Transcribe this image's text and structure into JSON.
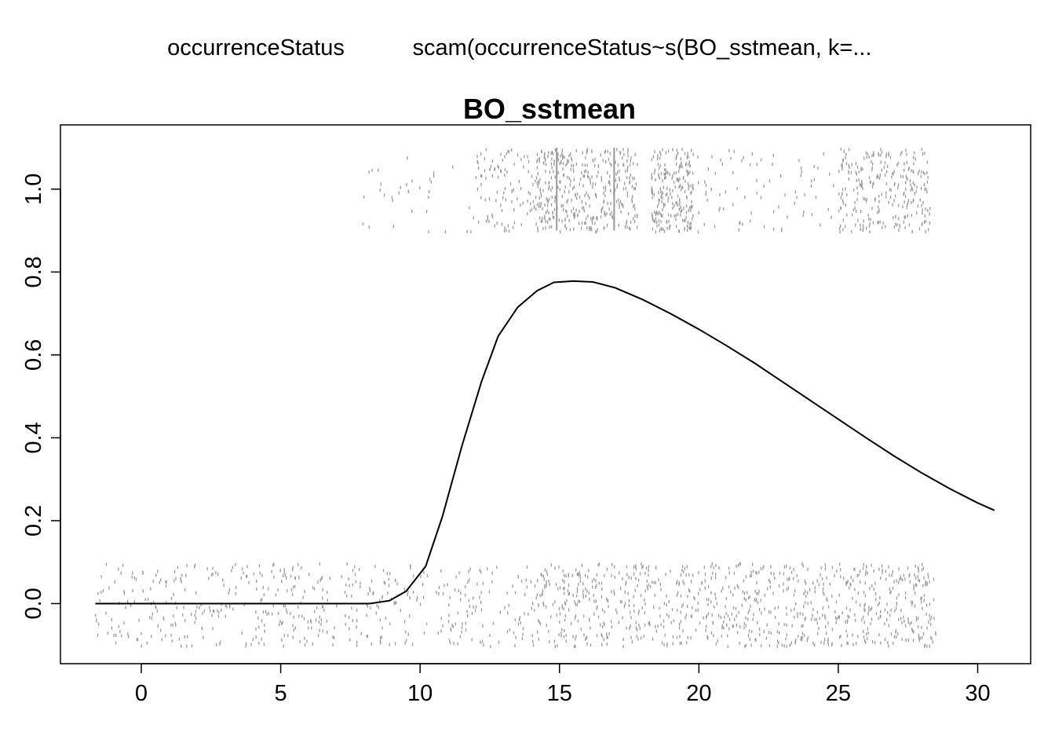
{
  "header": {
    "response_label": "occurrenceStatus",
    "model_label": "scam(occurrenceStatus~s(BO_sstmean, k=..."
  },
  "chart_data": {
    "type": "line",
    "title": "BO_sstmean",
    "xlabel": "",
    "ylabel": "",
    "xlim": [
      -2.9,
      31.9
    ],
    "ylim": [
      -0.145,
      1.155
    ],
    "x_ticks": [
      0,
      5,
      10,
      15,
      20,
      25,
      30
    ],
    "x_tick_labels": [
      "0",
      "5",
      "10",
      "15",
      "20",
      "25",
      "30"
    ],
    "y_ticks": [
      0.0,
      0.2,
      0.4,
      0.6,
      0.8,
      1.0
    ],
    "y_tick_labels": [
      "0.0",
      "0.2",
      "0.4",
      "0.6",
      "0.8",
      "1.0"
    ],
    "grid": false,
    "colors": {
      "curve": "#000000",
      "rug_points": "#999999",
      "axes": "#000000"
    },
    "series": [
      {
        "x": [
          -1.65,
          0,
          2,
          4,
          6,
          8.2,
          8.9,
          9.5,
          10.2,
          10.8,
          11.5,
          12.2,
          12.8,
          13.5,
          14.2,
          14.8,
          15.5,
          16.2,
          17,
          18,
          19,
          20,
          21,
          22,
          23,
          24,
          25,
          26,
          27,
          28,
          29,
          30,
          30.6
        ],
        "y": [
          0.0,
          0.0,
          0.0,
          0.0,
          0.0,
          0.0,
          0.007,
          0.03,
          0.09,
          0.21,
          0.38,
          0.535,
          0.645,
          0.715,
          0.755,
          0.775,
          0.778,
          0.776,
          0.762,
          0.733,
          0.699,
          0.662,
          0.622,
          0.58,
          0.535,
          0.49,
          0.445,
          0.4,
          0.356,
          0.315,
          0.277,
          0.243,
          0.225
        ]
      }
    ],
    "rug_points": {
      "absence": {
        "y_center": 0.0,
        "y_spread": 0.1,
        "x_range": [
          -1.7,
          28.8
        ],
        "density_bands": [
          {
            "x_range": [
              -1.7,
              8.5
            ],
            "count": 340
          },
          {
            "x_range": [
              8.5,
              14
            ],
            "count": 160
          },
          {
            "x_range": [
              14,
              28.5
            ],
            "count": 900
          }
        ]
      },
      "presence": {
        "y_center": 1.0,
        "y_spread": 0.1,
        "x_range": [
          7.9,
          28.3
        ],
        "density_bands": [
          {
            "x_range": [
              7.9,
              12
            ],
            "count": 35
          },
          {
            "x_range": [
              12,
              14
            ],
            "count": 90
          },
          {
            "x_range": [
              14,
              17.8
            ],
            "count": 400
          },
          {
            "x_range": [
              18.3,
              19.8
            ],
            "count": 230
          },
          {
            "x_range": [
              19.8,
              25
            ],
            "count": 80
          },
          {
            "x_range": [
              25,
              27.8
            ],
            "count": 230
          },
          {
            "x_range": [
              27.8,
              28.3
            ],
            "count": 40
          }
        ],
        "vertical_lines_at_x": [
          14.9,
          16.96
        ]
      }
    }
  }
}
